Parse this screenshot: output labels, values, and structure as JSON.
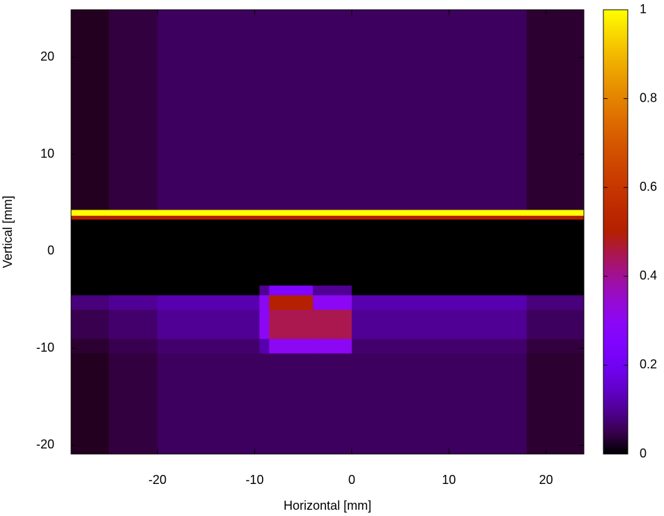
{
  "chart_data": {
    "type": "heatmap",
    "xlabel": "Horizontal [mm]",
    "ylabel": "Vertical [mm]",
    "xlim": [
      -28.9,
      23.9
    ],
    "ylim": [
      -20.9,
      24.9
    ],
    "xticks": [
      -20,
      -10,
      0,
      10,
      20
    ],
    "yticks": [
      -20,
      -10,
      0,
      10,
      20
    ],
    "x_edges": [
      -28.9,
      -25,
      -20,
      -9.5,
      -8.5,
      -4,
      0,
      5,
      18,
      23.9
    ],
    "y_edges": [
      -20.9,
      -10.5,
      -9,
      -6,
      -4.5,
      -3.5,
      3.3,
      3.7,
      4.3,
      24.9
    ],
    "z": [
      [
        0.02,
        0.04,
        0.06,
        0.06,
        0.06,
        0.06,
        0.06,
        0.06,
        0.03
      ],
      [
        0.03,
        0.05,
        0.07,
        0.12,
        0.3,
        0.3,
        0.07,
        0.07,
        0.04
      ],
      [
        0.05,
        0.07,
        0.1,
        0.3,
        0.45,
        0.45,
        0.1,
        0.1,
        0.06
      ],
      [
        0.08,
        0.1,
        0.12,
        0.3,
        0.5,
        0.3,
        0.12,
        0.12,
        0.08
      ],
      [
        0,
        0,
        0,
        0.1,
        0.25,
        0.1,
        0,
        0,
        0
      ],
      [
        0,
        0,
        0,
        0,
        0,
        0,
        0,
        0,
        0
      ],
      [
        0.5,
        0.5,
        0.5,
        0.5,
        0.5,
        0.5,
        0.5,
        0.5,
        0.5
      ],
      [
        1,
        1,
        1,
        1,
        1,
        1,
        1,
        1,
        1
      ],
      [
        0.02,
        0.04,
        0.06,
        0.06,
        0.06,
        0.06,
        0.06,
        0.06,
        0.03
      ]
    ],
    "zlim": [
      0,
      1
    ],
    "zticks": [
      0,
      0.2,
      0.4,
      0.6,
      0.8,
      1
    ],
    "palette": "rgbformulae 7,5,15"
  }
}
